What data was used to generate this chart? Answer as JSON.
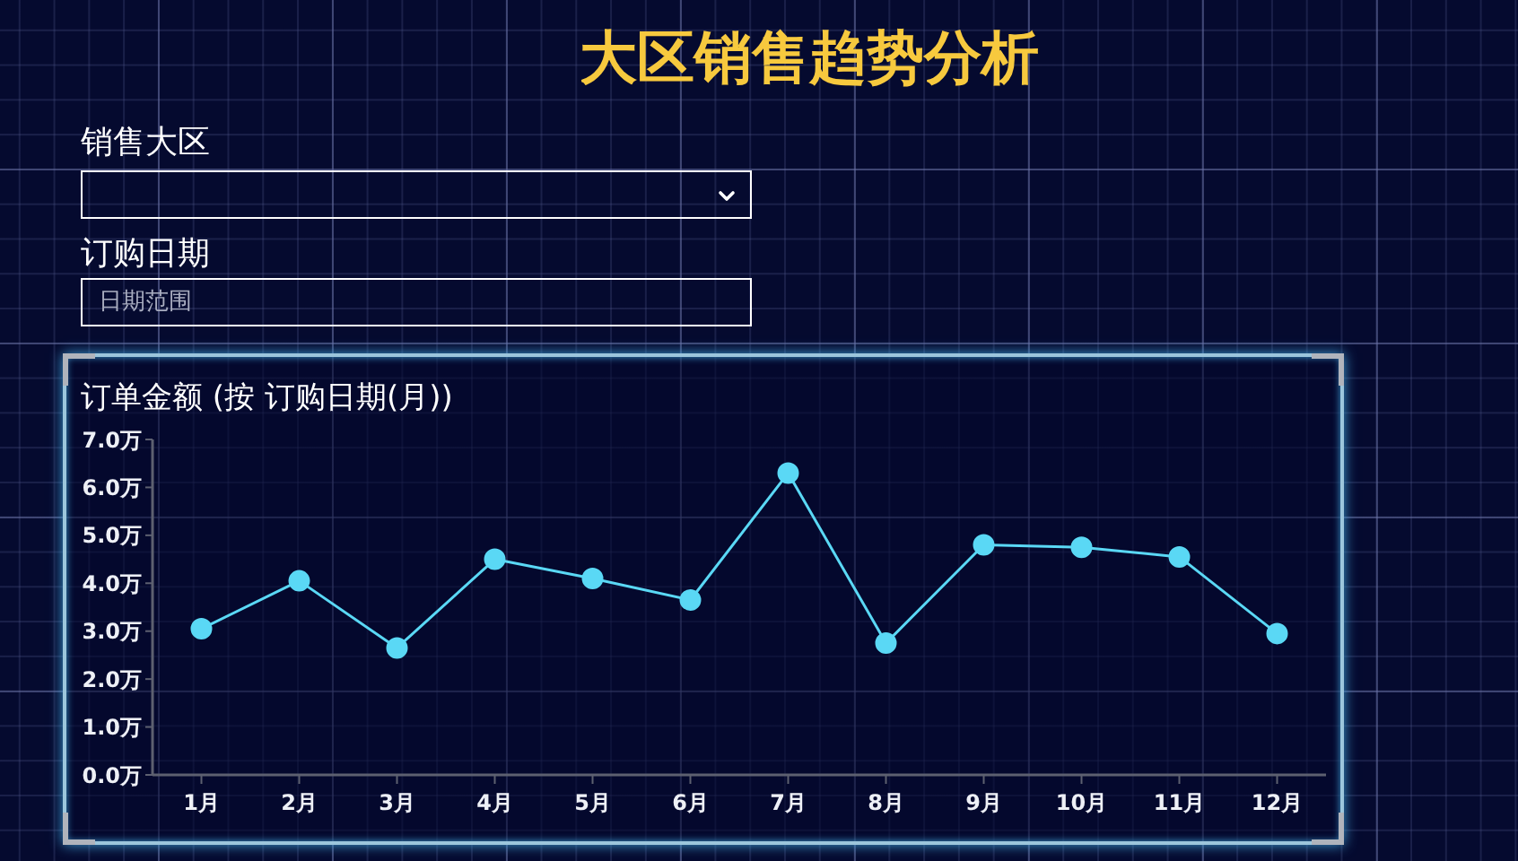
{
  "chart_data": [
    {
      "type": "other",
      "title": "大区销售趋势分析",
      "annotations": [
        "销售大区",
        "订购日期",
        "日期范围"
      ]
    },
    {
      "type": "line",
      "title": "订单金额 (按 订购日期(月))",
      "categories": [
        "1月",
        "2月",
        "3月",
        "4月",
        "5月",
        "6月",
        "7月",
        "8月",
        "9月",
        "10月",
        "11月",
        "12月"
      ],
      "series": [
        {
          "color": "#5ad8f5",
          "values": [
            3.05,
            4.05,
            2.65,
            4.5,
            4.1,
            3.65,
            6.3,
            2.75,
            4.8,
            4.75,
            4.55,
            2.95
          ]
        }
      ],
      "ylim": [
        0,
        7
      ],
      "yticks": [
        {
          "value": 0,
          "label": "0.0万"
        },
        {
          "value": 1,
          "label": "1.0万"
        },
        {
          "value": 2,
          "label": "2.0万"
        },
        {
          "value": 3,
          "label": "3.0万"
        },
        {
          "value": 4,
          "label": "4.0万"
        },
        {
          "value": 5,
          "label": "5.0万"
        },
        {
          "value": 6,
          "label": "6.0万"
        },
        {
          "value": 7,
          "label": "7.0万"
        }
      ],
      "marker": "circle"
    }
  ]
}
